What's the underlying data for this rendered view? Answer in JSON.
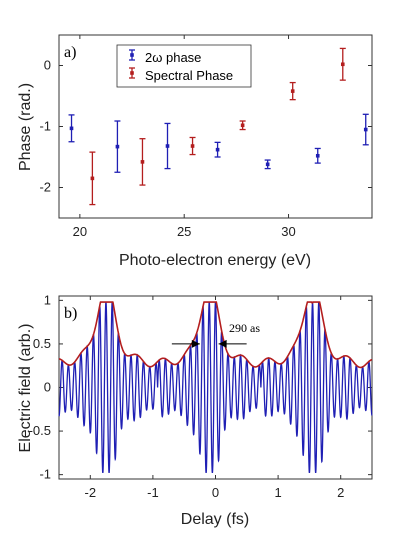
{
  "chart_data": [
    {
      "type": "scatter",
      "panel_label": "a)",
      "xlabel": "Photo-electron energy (eV)",
      "ylabel": "Phase (rad.)",
      "xlim": [
        19,
        34
      ],
      "ylim": [
        -2.5,
        0.5
      ],
      "xticks": [
        20,
        25,
        30
      ],
      "yticks": [
        0,
        -1,
        -2
      ],
      "grid": false,
      "legend_position": "top-center",
      "series": [
        {
          "name": "2ω phase",
          "color": "#1f1fb4",
          "points": [
            {
              "x": 19.6,
              "y": -1.03,
              "err": 0.22
            },
            {
              "x": 21.8,
              "y": -1.33,
              "err": 0.42
            },
            {
              "x": 24.2,
              "y": -1.32,
              "err": 0.37
            },
            {
              "x": 26.6,
              "y": -1.38,
              "err": 0.12
            },
            {
              "x": 29.0,
              "y": -1.62,
              "err": 0.07
            },
            {
              "x": 31.4,
              "y": -1.48,
              "err": 0.12
            },
            {
              "x": 33.7,
              "y": -1.05,
              "err": 0.25
            }
          ]
        },
        {
          "name": "Spectral Phase",
          "color": "#b41e1e",
          "points": [
            {
              "x": 20.6,
              "y": -1.85,
              "err": 0.43
            },
            {
              "x": 23.0,
              "y": -1.58,
              "err": 0.38
            },
            {
              "x": 25.4,
              "y": -1.32,
              "err": 0.14
            },
            {
              "x": 27.8,
              "y": -0.98,
              "err": 0.07
            },
            {
              "x": 30.2,
              "y": -0.42,
              "err": 0.14
            },
            {
              "x": 32.6,
              "y": 0.02,
              "err": 0.26
            }
          ]
        }
      ]
    },
    {
      "type": "line",
      "panel_label": "b)",
      "xlabel": "Delay (fs)",
      "ylabel": "Electric field (arb.)",
      "xlim": [
        -2.5,
        2.5
      ],
      "ylim": [
        -1.05,
        1.05
      ],
      "xticks": [
        -2,
        -1,
        0,
        1,
        2
      ],
      "yticks": [
        1,
        0.5,
        0,
        -0.5,
        -1
      ],
      "grid": false,
      "annotation": "290 as",
      "series": [
        {
          "name": "",
          "color": "#1f1fb4",
          "kind": "field"
        },
        {
          "name": "",
          "color": "#b41e1e",
          "kind": "envelope"
        }
      ],
      "pulse_centers": [
        -1.75,
        -0.1,
        1.55
      ],
      "carrier_period": 0.1
    }
  ]
}
